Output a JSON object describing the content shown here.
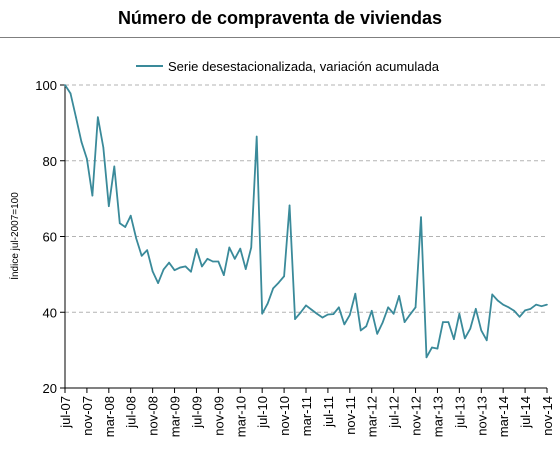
{
  "chart_data": {
    "type": "line",
    "title": "Número de compraventa de viviendas",
    "ylabel": "Índice jul-2007=100",
    "xlabel": "",
    "ylim": [
      20,
      100
    ],
    "yticks": [
      20,
      40,
      60,
      80,
      100
    ],
    "grid": "horizontal-dashed",
    "legend": "top-center",
    "color": "#3a8a9a",
    "x_tick_labels": [
      "jul-07",
      "nov-07",
      "mar-08",
      "jul-08",
      "nov-08",
      "mar-09",
      "jul-09",
      "nov-09",
      "mar-10",
      "jul-10",
      "nov-10",
      "mar-11",
      "jul-11",
      "nov-11",
      "mar-12",
      "jul-12",
      "nov-12",
      "mar-13",
      "jul-13",
      "nov-13",
      "mar-14",
      "jul-14",
      "nov-14"
    ],
    "series": [
      {
        "name": "Serie desestacionalizada, variación acumulada",
        "start": "jul-07",
        "frequency": "monthly",
        "values": [
          100,
          97.8,
          91.5,
          85.0,
          80.5,
          70.8,
          91.5,
          83.5,
          68.0,
          78.5,
          63.5,
          62.5,
          65.5,
          59.5,
          54.9,
          56.4,
          50.8,
          47.7,
          51.3,
          53.1,
          51.1,
          51.8,
          52.1,
          50.7,
          56.7,
          52.1,
          54.1,
          53.4,
          53.4,
          49.8,
          57.1,
          54.1,
          56.8,
          51.4,
          57.1,
          86.4,
          39.6,
          42.3,
          46.3,
          47.8,
          49.5,
          68.2,
          38.2,
          39.9,
          41.8,
          40.7,
          39.6,
          38.6,
          39.4,
          39.5,
          41.3,
          36.8,
          39.3,
          44.9,
          35.2,
          36.3,
          40.4,
          34.3,
          37.3,
          41.3,
          39.6,
          44.3,
          37.4,
          39.4,
          41.3,
          65.1,
          28.1,
          30.7,
          30.4,
          37.4,
          37.4,
          32.9,
          39.6,
          33.1,
          35.7,
          40.9,
          35.2,
          32.6,
          44.7,
          43.1,
          42.0,
          41.3,
          40.4,
          38.8,
          40.5,
          40.9,
          42.0,
          41.6,
          42.0
        ]
      }
    ]
  }
}
